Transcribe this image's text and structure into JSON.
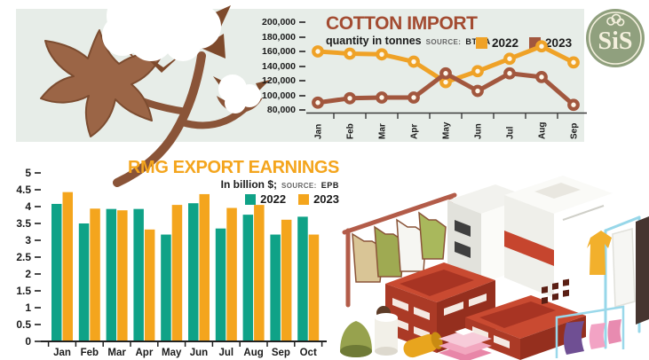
{
  "logo": {
    "text": "SiS",
    "icon": "cotton-boll-line-icon",
    "bg_color": "#90A07E",
    "fg_color": "#F4F0DD"
  },
  "icons": {
    "top_left": "cotton-plant-illustration",
    "bottom_right": "garments-and-containers-illustration",
    "top_right": "sis-cotton-logo"
  },
  "colors": {
    "panel_bg": "#E7EDE8",
    "cotton_title": "#A34B31",
    "orange": "#EFA227",
    "brown": "#A2573E",
    "teal": "#0FA287",
    "rmg_orange": "#F4A51D",
    "axis_dark": "#1b1b1b"
  },
  "chart_data": [
    {
      "id": "cotton-import",
      "type": "line",
      "title": "COTTON IMPORT",
      "subtitle": "quantity in tonnes",
      "source_prefix": "SOURCE:",
      "source": "BTMA",
      "categories": [
        "Jan",
        "Feb",
        "Mar",
        "Apr",
        "May",
        "Jun",
        "Jul",
        "Aug",
        "Sep"
      ],
      "series": [
        {
          "name": "2022",
          "color": "#EFA227",
          "values": [
            160000,
            157000,
            156000,
            146000,
            118000,
            133000,
            150000,
            167000,
            145000
          ]
        },
        {
          "name": "2023",
          "color": "#A2573E",
          "values": [
            90000,
            96000,
            97000,
            97000,
            130000,
            106000,
            130000,
            125000,
            87000
          ]
        }
      ],
      "ylim": [
        80000,
        200000
      ],
      "ytick_step": 20000,
      "yticks": [
        "200,000",
        "180,000",
        "160,000",
        "140,000",
        "120,000",
        "100,000",
        "80,000"
      ],
      "grid": false,
      "legend_position": "top-right",
      "marker": "open-circle",
      "x_label_rotation": -90
    },
    {
      "id": "rmg-export-earnings",
      "type": "bar",
      "title": "RMG EXPORT EARNINGS",
      "subtitle": "In billion $;",
      "source_prefix": "SOURCE:",
      "source": "EPB",
      "categories": [
        "Jan",
        "Feb",
        "Mar",
        "Apr",
        "May",
        "Jun",
        "Jul",
        "Aug",
        "Sep",
        "Oct"
      ],
      "series": [
        {
          "name": "2022",
          "color": "#0FA287",
          "values": [
            4.08,
            3.5,
            3.93,
            3.93,
            3.17,
            4.1,
            3.35,
            3.76,
            3.17,
            3.7
          ]
        },
        {
          "name": "2023",
          "color": "#F4A51D",
          "values": [
            4.43,
            3.94,
            3.89,
            3.32,
            4.05,
            4.37,
            3.96,
            4.05,
            3.61,
            3.17
          ]
        }
      ],
      "ylim": [
        0,
        5
      ],
      "ytick_step": 0.5,
      "yticks": [
        "5",
        "4.5",
        "4",
        "3.5",
        "3",
        "2.5",
        "2",
        "1.5",
        "1",
        "0.5",
        "0"
      ],
      "grid": false,
      "legend_position": "top-right"
    }
  ]
}
